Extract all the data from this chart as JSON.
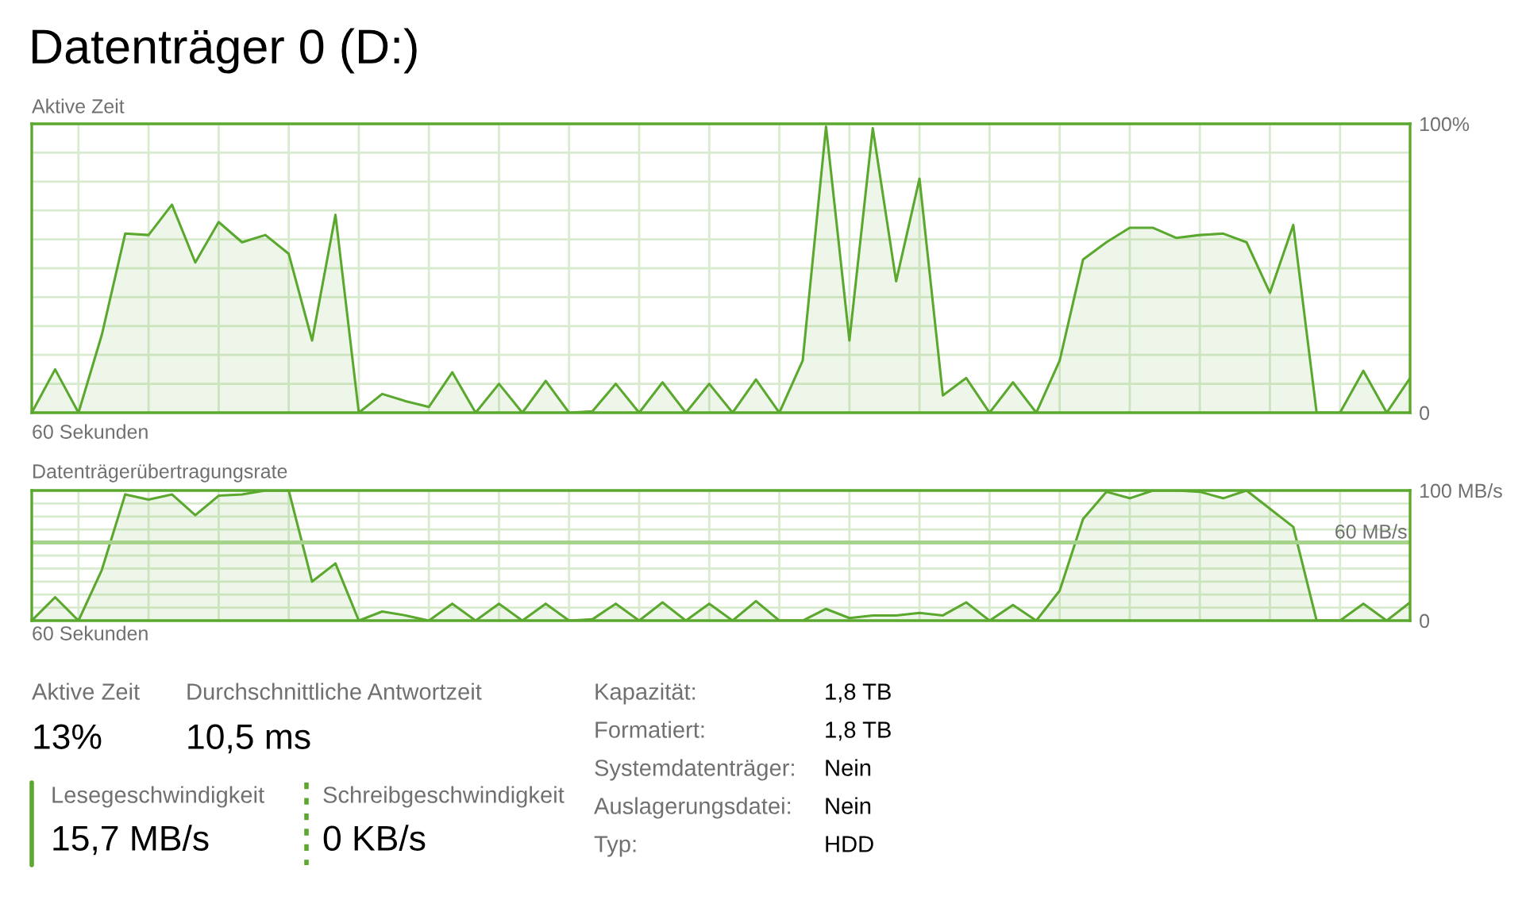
{
  "chart_data": [
    {
      "type": "area",
      "title": "Datenträger 0 (D:)",
      "subtitle": "Aktive Zeit",
      "xlabel": "60 Sekunden",
      "categories": [
        null,
        null,
        null,
        null,
        null,
        null,
        null,
        null,
        null,
        null,
        null,
        null,
        null,
        null,
        null,
        null,
        null,
        null,
        null,
        null,
        null,
        null,
        null,
        null,
        null,
        null,
        null,
        null,
        null,
        null,
        null,
        null,
        null,
        null,
        null,
        null,
        null,
        null,
        null,
        null,
        null,
        null,
        null,
        null,
        null,
        null,
        null,
        null,
        null,
        null,
        null,
        null,
        null,
        null,
        null,
        null,
        null,
        null,
        null,
        null
      ],
      "tick_labels": "y",
      "series": [
        {
          "color": "#5ba82e",
          "values": [
            0,
            15,
            0,
            27,
            62,
            61.5,
            72,
            52,
            66,
            59,
            61.5,
            55,
            25,
            68.5,
            0,
            6.5,
            4,
            2,
            14,
            0,
            10,
            0,
            11,
            0,
            0.5,
            10,
            0,
            10.5,
            0,
            10,
            0,
            11.5,
            0,
            18,
            99,
            25,
            98.5,
            45.5,
            81,
            6,
            12,
            0,
            10.5,
            0,
            18,
            53,
            59,
            64,
            64,
            60.5,
            61.5,
            62,
            59,
            41.5,
            65,
            0,
            0,
            14.5,
            0,
            12
          ]
        }
      ],
      "ylim": [
        0,
        100
      ],
      "yticks": [
        {
          "value": 0,
          "label": "0"
        },
        {
          "value": 10,
          "label": null
        },
        {
          "value": 20,
          "label": null
        },
        {
          "value": 30,
          "label": null
        },
        {
          "value": 40,
          "label": null
        },
        {
          "value": 50,
          "label": null
        },
        {
          "value": 60,
          "label": null
        },
        {
          "value": 70,
          "label": null
        },
        {
          "value": 80,
          "label": null
        },
        {
          "value": 90,
          "label": null
        },
        {
          "value": 100,
          "label": "100%"
        }
      ],
      "grid": true
    },
    {
      "type": "area",
      "title": "Datenträgerübertragungsrate",
      "xlabel": "60 Sekunden",
      "categories": [
        null,
        null,
        null,
        null,
        null,
        null,
        null,
        null,
        null,
        null,
        null,
        null,
        null,
        null,
        null,
        null,
        null,
        null,
        null,
        null,
        null,
        null,
        null,
        null,
        null,
        null,
        null,
        null,
        null,
        null,
        null,
        null,
        null,
        null,
        null,
        null,
        null,
        null,
        null,
        null,
        null,
        null,
        null,
        null,
        null,
        null,
        null,
        null,
        null,
        null,
        null,
        null,
        null,
        null,
        null,
        null,
        null,
        null,
        null,
        null
      ],
      "tick_labels": "y",
      "series": [
        {
          "color": "#5ba82e",
          "values": [
            0,
            18,
            0,
            39,
            97,
            93,
            97,
            81,
            96,
            97,
            100,
            100,
            30,
            44,
            0,
            7,
            4,
            0,
            13,
            0,
            13,
            0,
            13,
            0,
            1,
            13,
            0,
            14,
            0,
            13,
            0,
            15,
            0,
            0,
            9,
            2,
            4,
            4,
            6,
            4,
            14,
            0,
            12,
            0,
            23,
            78,
            99,
            94,
            100,
            100,
            99,
            94,
            100,
            86,
            72,
            0,
            0,
            13,
            0,
            14
          ]
        }
      ],
      "ylim": [
        0,
        100
      ],
      "yticks": [
        {
          "value": 0,
          "label": "0"
        },
        {
          "value": 10,
          "label": null
        },
        {
          "value": 20,
          "label": null
        },
        {
          "value": 30,
          "label": null
        },
        {
          "value": 40,
          "label": null
        },
        {
          "value": 50,
          "label": null
        },
        {
          "value": 70,
          "label": null
        },
        {
          "value": 80,
          "label": null
        },
        {
          "value": 90,
          "label": null
        },
        {
          "value": 100,
          "label": "100 MB/s"
        }
      ],
      "ref_lines": [
        {
          "axis": "y",
          "value": 60,
          "label": "60 MB/s",
          "color": "#a6d48c"
        }
      ],
      "grid": true
    },
    {
      "type": "other",
      "annotations": [
        "Aktive Zeit",
        "13%",
        "Durchschnittliche Antwortzeit",
        "10,5 ms",
        "Lesegeschwindigkeit",
        "15,7 MB/s",
        "Schreibgeschwindigkeit",
        "0 KB/s",
        "Kapazität:",
        "1,8 TB",
        "Formatiert:",
        "1,8 TB",
        "Systemdatenträger:",
        "Nein",
        "Auslagerungsdatei:",
        "Nein",
        "Typ:",
        "HDD"
      ]
    }
  ]
}
